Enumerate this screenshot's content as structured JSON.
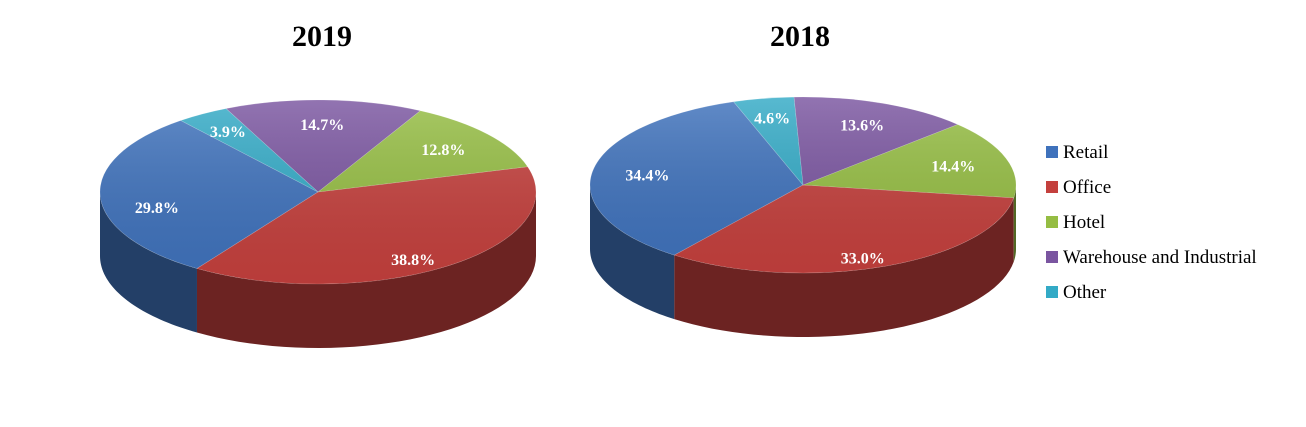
{
  "chart_data": {
    "type": "pie",
    "categories": [
      "Retail",
      "Office",
      "Hotel",
      "Warehouse and Industrial",
      "Other"
    ],
    "colors": {
      "Retail": "#3f72bc",
      "Office": "#c4403d",
      "Hotel": "#95bd43",
      "Warehouse and Industrial": "#7a55a0",
      "Other": "#33aac6"
    },
    "legend_position": "right",
    "pies": [
      {
        "title": "2019",
        "values": [
          29.8,
          38.8,
          12.8,
          14.7,
          3.9
        ],
        "labels": [
          "29.8%",
          "38.8%",
          "12.8%",
          "14.7%",
          "3.9%"
        ]
      },
      {
        "title": "2018",
        "values": [
          34.4,
          33.0,
          14.4,
          13.6,
          4.6
        ],
        "labels": [
          "34.4%",
          "33.0%",
          "14.4%",
          "13.6%",
          "4.6%"
        ]
      }
    ]
  }
}
